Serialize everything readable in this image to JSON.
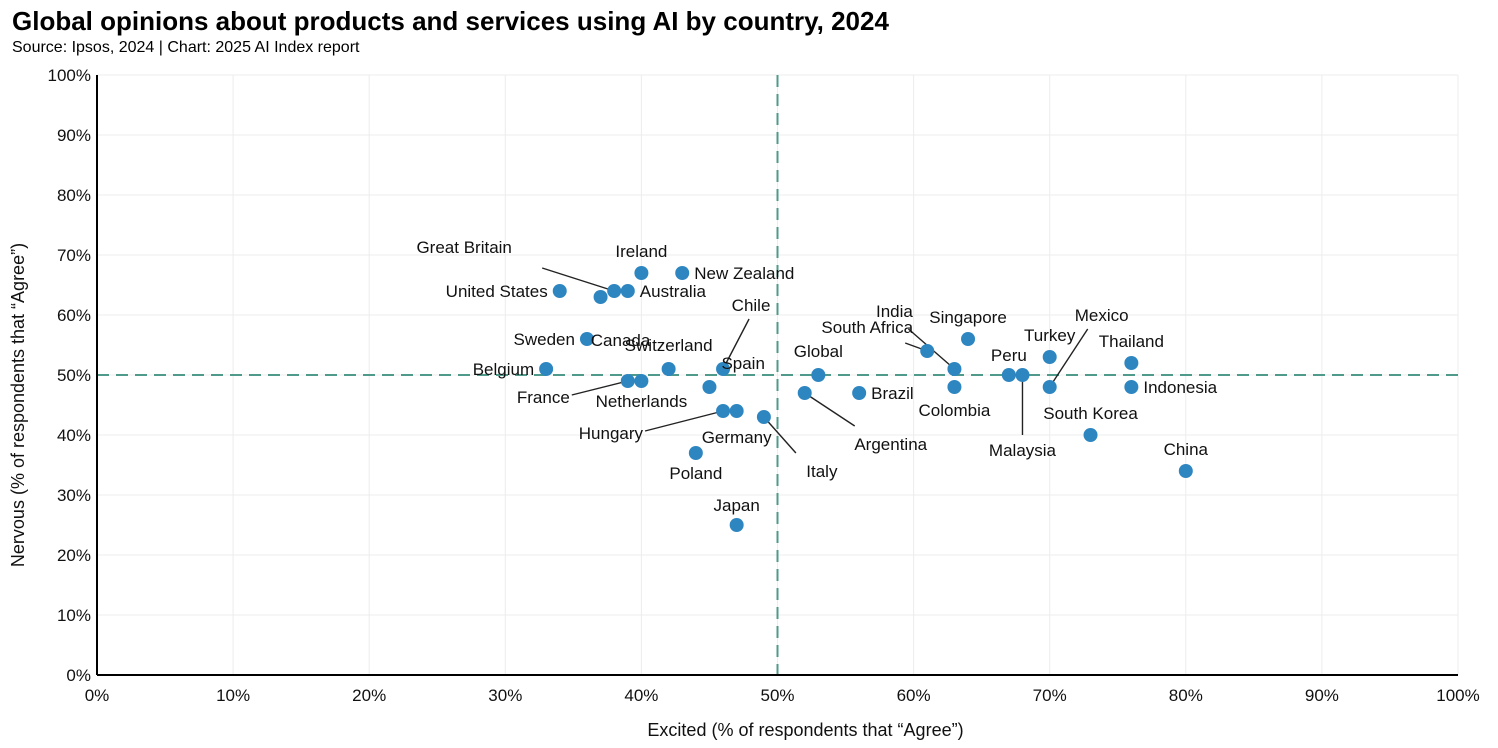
{
  "chart_data": {
    "type": "scatter",
    "title": "Global opinions about products and services using AI by country, 2024",
    "subtitle": "Source: Ipsos, 2024 | Chart: 2025 AI Index report",
    "xlabel": "Excited (% of respondents that “Agree”)",
    "ylabel": "Nervous (% of respondents that “Agree”)",
    "xlim": [
      0,
      100
    ],
    "ylim": [
      0,
      100
    ],
    "x_ticks": [
      "0%",
      "10%",
      "20%",
      "30%",
      "40%",
      "50%",
      "60%",
      "70%",
      "80%",
      "90%",
      "100%"
    ],
    "y_ticks": [
      "0%",
      "10%",
      "20%",
      "30%",
      "40%",
      "50%",
      "60%",
      "70%",
      "80%",
      "90%",
      "100%"
    ],
    "grid": true,
    "reference_lines": {
      "x": 50,
      "y": 50
    },
    "point_color": "#2e86c1",
    "reference_color": "#4f9a8a",
    "points": [
      {
        "label": "United States",
        "x": 34,
        "y": 64
      },
      {
        "label": "Canada",
        "x": 37,
        "y": 63
      },
      {
        "label": "Great Britain",
        "x": 38,
        "y": 64
      },
      {
        "label": "Australia",
        "x": 39,
        "y": 64
      },
      {
        "label": "Ireland",
        "x": 40,
        "y": 67
      },
      {
        "label": "New Zealand",
        "x": 43,
        "y": 67
      },
      {
        "label": "Sweden",
        "x": 36,
        "y": 56
      },
      {
        "label": "Belgium",
        "x": 33,
        "y": 51
      },
      {
        "label": "France",
        "x": 39,
        "y": 49
      },
      {
        "label": "Netherlands",
        "x": 40,
        "y": 49
      },
      {
        "label": "Switzerland",
        "x": 42,
        "y": 51
      },
      {
        "label": "Chile",
        "x": 46,
        "y": 51
      },
      {
        "label": "Spain",
        "x": 45,
        "y": 48
      },
      {
        "label": "Hungary",
        "x": 46,
        "y": 44
      },
      {
        "label": "Germany",
        "x": 47,
        "y": 44
      },
      {
        "label": "Italy",
        "x": 49,
        "y": 43
      },
      {
        "label": "Poland",
        "x": 44,
        "y": 37
      },
      {
        "label": "Japan",
        "x": 47,
        "y": 25
      },
      {
        "label": "Argentina",
        "x": 52,
        "y": 47
      },
      {
        "label": "Global",
        "x": 53,
        "y": 50
      },
      {
        "label": "Brazil",
        "x": 56,
        "y": 47
      },
      {
        "label": "South Africa",
        "x": 61,
        "y": 54
      },
      {
        "label": "India",
        "x": 63,
        "y": 51
      },
      {
        "label": "Colombia",
        "x": 63,
        "y": 48
      },
      {
        "label": "Singapore",
        "x": 64,
        "y": 56
      },
      {
        "label": "Peru",
        "x": 67,
        "y": 50
      },
      {
        "label": "Malaysia",
        "x": 68,
        "y": 50
      },
      {
        "label": "Turkey",
        "x": 70,
        "y": 53
      },
      {
        "label": "Mexico",
        "x": 70,
        "y": 48
      },
      {
        "label": "South Korea",
        "x": 73,
        "y": 40
      },
      {
        "label": "Thailand",
        "x": 76,
        "y": 52
      },
      {
        "label": "Indonesia",
        "x": 76,
        "y": 48
      },
      {
        "label": "China",
        "x": 80,
        "y": 34
      }
    ]
  }
}
